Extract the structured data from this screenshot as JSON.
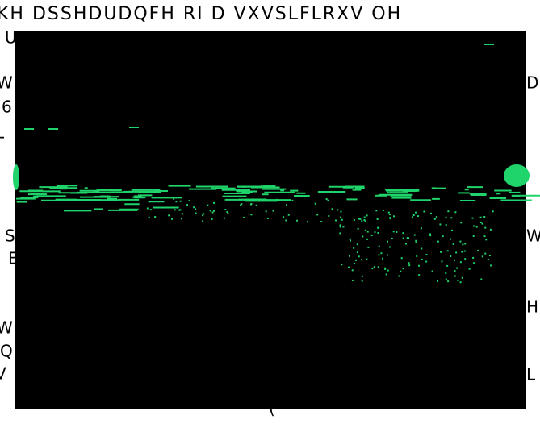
{
  "header": {
    "text": "KH DSSHDUDQFH RI D VXVSLFLRXV OH"
  },
  "fragments": [
    "U",
    "W",
    "6",
    "L",
    "S",
    "E",
    "W",
    "Q",
    "V",
    "D",
    "W",
    "H",
    "L",
    "("
  ]
}
